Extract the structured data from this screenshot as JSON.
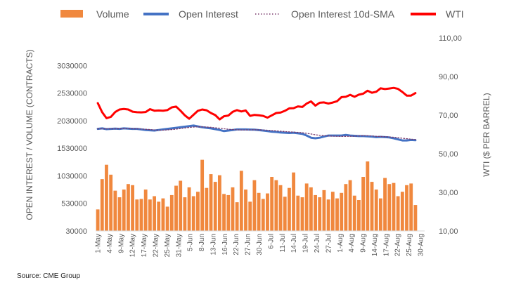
{
  "source": "Source: CME Group",
  "colors": {
    "volume": "#F0883E",
    "open_interest": "#4472C4",
    "oi_sma": "#7A3B6E",
    "wti": "#FF0000",
    "text": "#595959"
  },
  "chart_data": {
    "type": "bar+line",
    "legend": {
      "placement": "top",
      "entries": [
        "Volume",
        "Open Interest",
        "Open Interest 10d-SMA",
        "WTI"
      ]
    },
    "ylabel_left": "OPEN INTEREST / VOLUME (CONTRACTS)",
    "ylabel_right": "WTI ($ PER BARREL)",
    "ylim_left": [
      30000,
      3530000
    ],
    "yticks_left": [
      "3030000",
      "2530000",
      "2030000",
      "1530000",
      "1030000",
      "530000",
      "30000"
    ],
    "ylim_right": [
      10,
      110
    ],
    "yticks_right": [
      "110,00",
      "90,00",
      "70,00",
      "50,00",
      "30,00",
      "10,00"
    ],
    "xticks": [
      "1-May",
      "4-May",
      "9-May",
      "12-May",
      "17-May",
      "22-May",
      "25-May",
      "31-May",
      "5-Jun",
      "8-Jun",
      "13-Jun",
      "16-Jun",
      "22-Jun",
      "27-Jun",
      "30-Jun",
      "6-Jul",
      "11-Jul",
      "14-Jul",
      "19-Jul",
      "24-Jul",
      "27-Jul",
      "1-Aug",
      "4-Aug",
      "9-Aug",
      "14-Aug",
      "17-Aug",
      "22-Aug",
      "25-Aug",
      "30-Aug"
    ],
    "series": [
      {
        "name": "Volume",
        "type": "bar",
        "axis": "left",
        "values": [
          420000,
          970000,
          1230000,
          1050000,
          760000,
          640000,
          780000,
          880000,
          860000,
          600000,
          610000,
          780000,
          600000,
          660000,
          560000,
          620000,
          470000,
          680000,
          850000,
          940000,
          640000,
          820000,
          660000,
          740000,
          1320000,
          810000,
          1060000,
          920000,
          1040000,
          700000,
          680000,
          820000,
          550000,
          1120000,
          780000,
          560000,
          950000,
          720000,
          610000,
          710000,
          1010000,
          950000,
          860000,
          650000,
          810000,
          1090000,
          670000,
          640000,
          890000,
          820000,
          680000,
          640000,
          770000,
          600000,
          740000,
          620000,
          720000,
          880000,
          950000,
          670000,
          590000,
          1010000,
          1290000,
          920000,
          780000,
          620000,
          990000,
          880000,
          900000,
          660000,
          740000,
          860000,
          890000,
          500000
        ]
      },
      {
        "name": "Open Interest",
        "type": "line",
        "axis": "left",
        "values": [
          1880000,
          1890000,
          1875000,
          1880000,
          1885000,
          1880000,
          1890000,
          1885000,
          1880000,
          1880000,
          1870000,
          1860000,
          1855000,
          1850000,
          1860000,
          1870000,
          1880000,
          1890000,
          1900000,
          1910000,
          1920000,
          1930000,
          1940000,
          1925000,
          1910000,
          1900000,
          1890000,
          1875000,
          1860000,
          1840000,
          1850000,
          1860000,
          1870000,
          1870000,
          1870000,
          1868000,
          1865000,
          1858000,
          1850000,
          1840000,
          1830000,
          1825000,
          1815000,
          1810000,
          1805000,
          1810000,
          1800000,
          1790000,
          1760000,
          1720000,
          1710000,
          1720000,
          1740000,
          1760000,
          1760000,
          1760000,
          1760000,
          1770000,
          1760000,
          1755000,
          1750000,
          1750000,
          1745000,
          1740000,
          1730000,
          1735000,
          1730000,
          1725000,
          1710000,
          1690000,
          1670000,
          1670000,
          1680000,
          1675000
        ]
      },
      {
        "name": "Open Interest 10d-SMA",
        "type": "line",
        "style": "dotted",
        "axis": "left",
        "values": [
          1880000,
          1880000,
          1880000,
          1880000,
          1881000,
          1882000,
          1883000,
          1883000,
          1882000,
          1881000,
          1878000,
          1873000,
          1868000,
          1862000,
          1858000,
          1858000,
          1862000,
          1868000,
          1876000,
          1886000,
          1896000,
          1906000,
          1914000,
          1918000,
          1918000,
          1914000,
          1908000,
          1900000,
          1892000,
          1882000,
          1874000,
          1868000,
          1864000,
          1862000,
          1862000,
          1863000,
          1864000,
          1863000,
          1860000,
          1856000,
          1850000,
          1844000,
          1838000,
          1832000,
          1826000,
          1822000,
          1817000,
          1810000,
          1800000,
          1787000,
          1774000,
          1764000,
          1757000,
          1752000,
          1748000,
          1746000,
          1745000,
          1745000,
          1746000,
          1748000,
          1752000,
          1755000,
          1755000,
          1752000,
          1746000,
          1742000,
          1738000,
          1734000,
          1728000,
          1720000,
          1710000,
          1702000,
          1694000,
          1688000
        ]
      },
      {
        "name": "WTI",
        "type": "line",
        "axis": "right",
        "values": [
          76.2,
          71.5,
          68.4,
          69.1,
          71.6,
          72.9,
          73.2,
          72.9,
          71.8,
          71.5,
          71.4,
          71.6,
          73.1,
          72.3,
          72.4,
          72.3,
          72.6,
          74.0,
          74.4,
          72.3,
          69.9,
          68.1,
          70.2,
          72.2,
          72.9,
          72.5,
          71.1,
          70.0,
          67.8,
          69.4,
          69.8,
          71.7,
          72.6,
          71.9,
          72.4,
          69.6,
          70.1,
          69.9,
          69.6,
          68.7,
          69.9,
          71.1,
          71.3,
          72.2,
          73.5,
          73.6,
          74.5,
          74.2,
          76.0,
          77.1,
          74.9,
          76.4,
          76.6,
          76.0,
          76.5,
          77.2,
          79.3,
          79.5,
          80.5,
          79.5,
          80.6,
          81.1,
          82.6,
          81.6,
          82.1,
          83.9,
          83.5,
          83.8,
          84.1,
          83.6,
          82.0,
          80.1,
          80.1,
          81.4
        ]
      }
    ]
  }
}
